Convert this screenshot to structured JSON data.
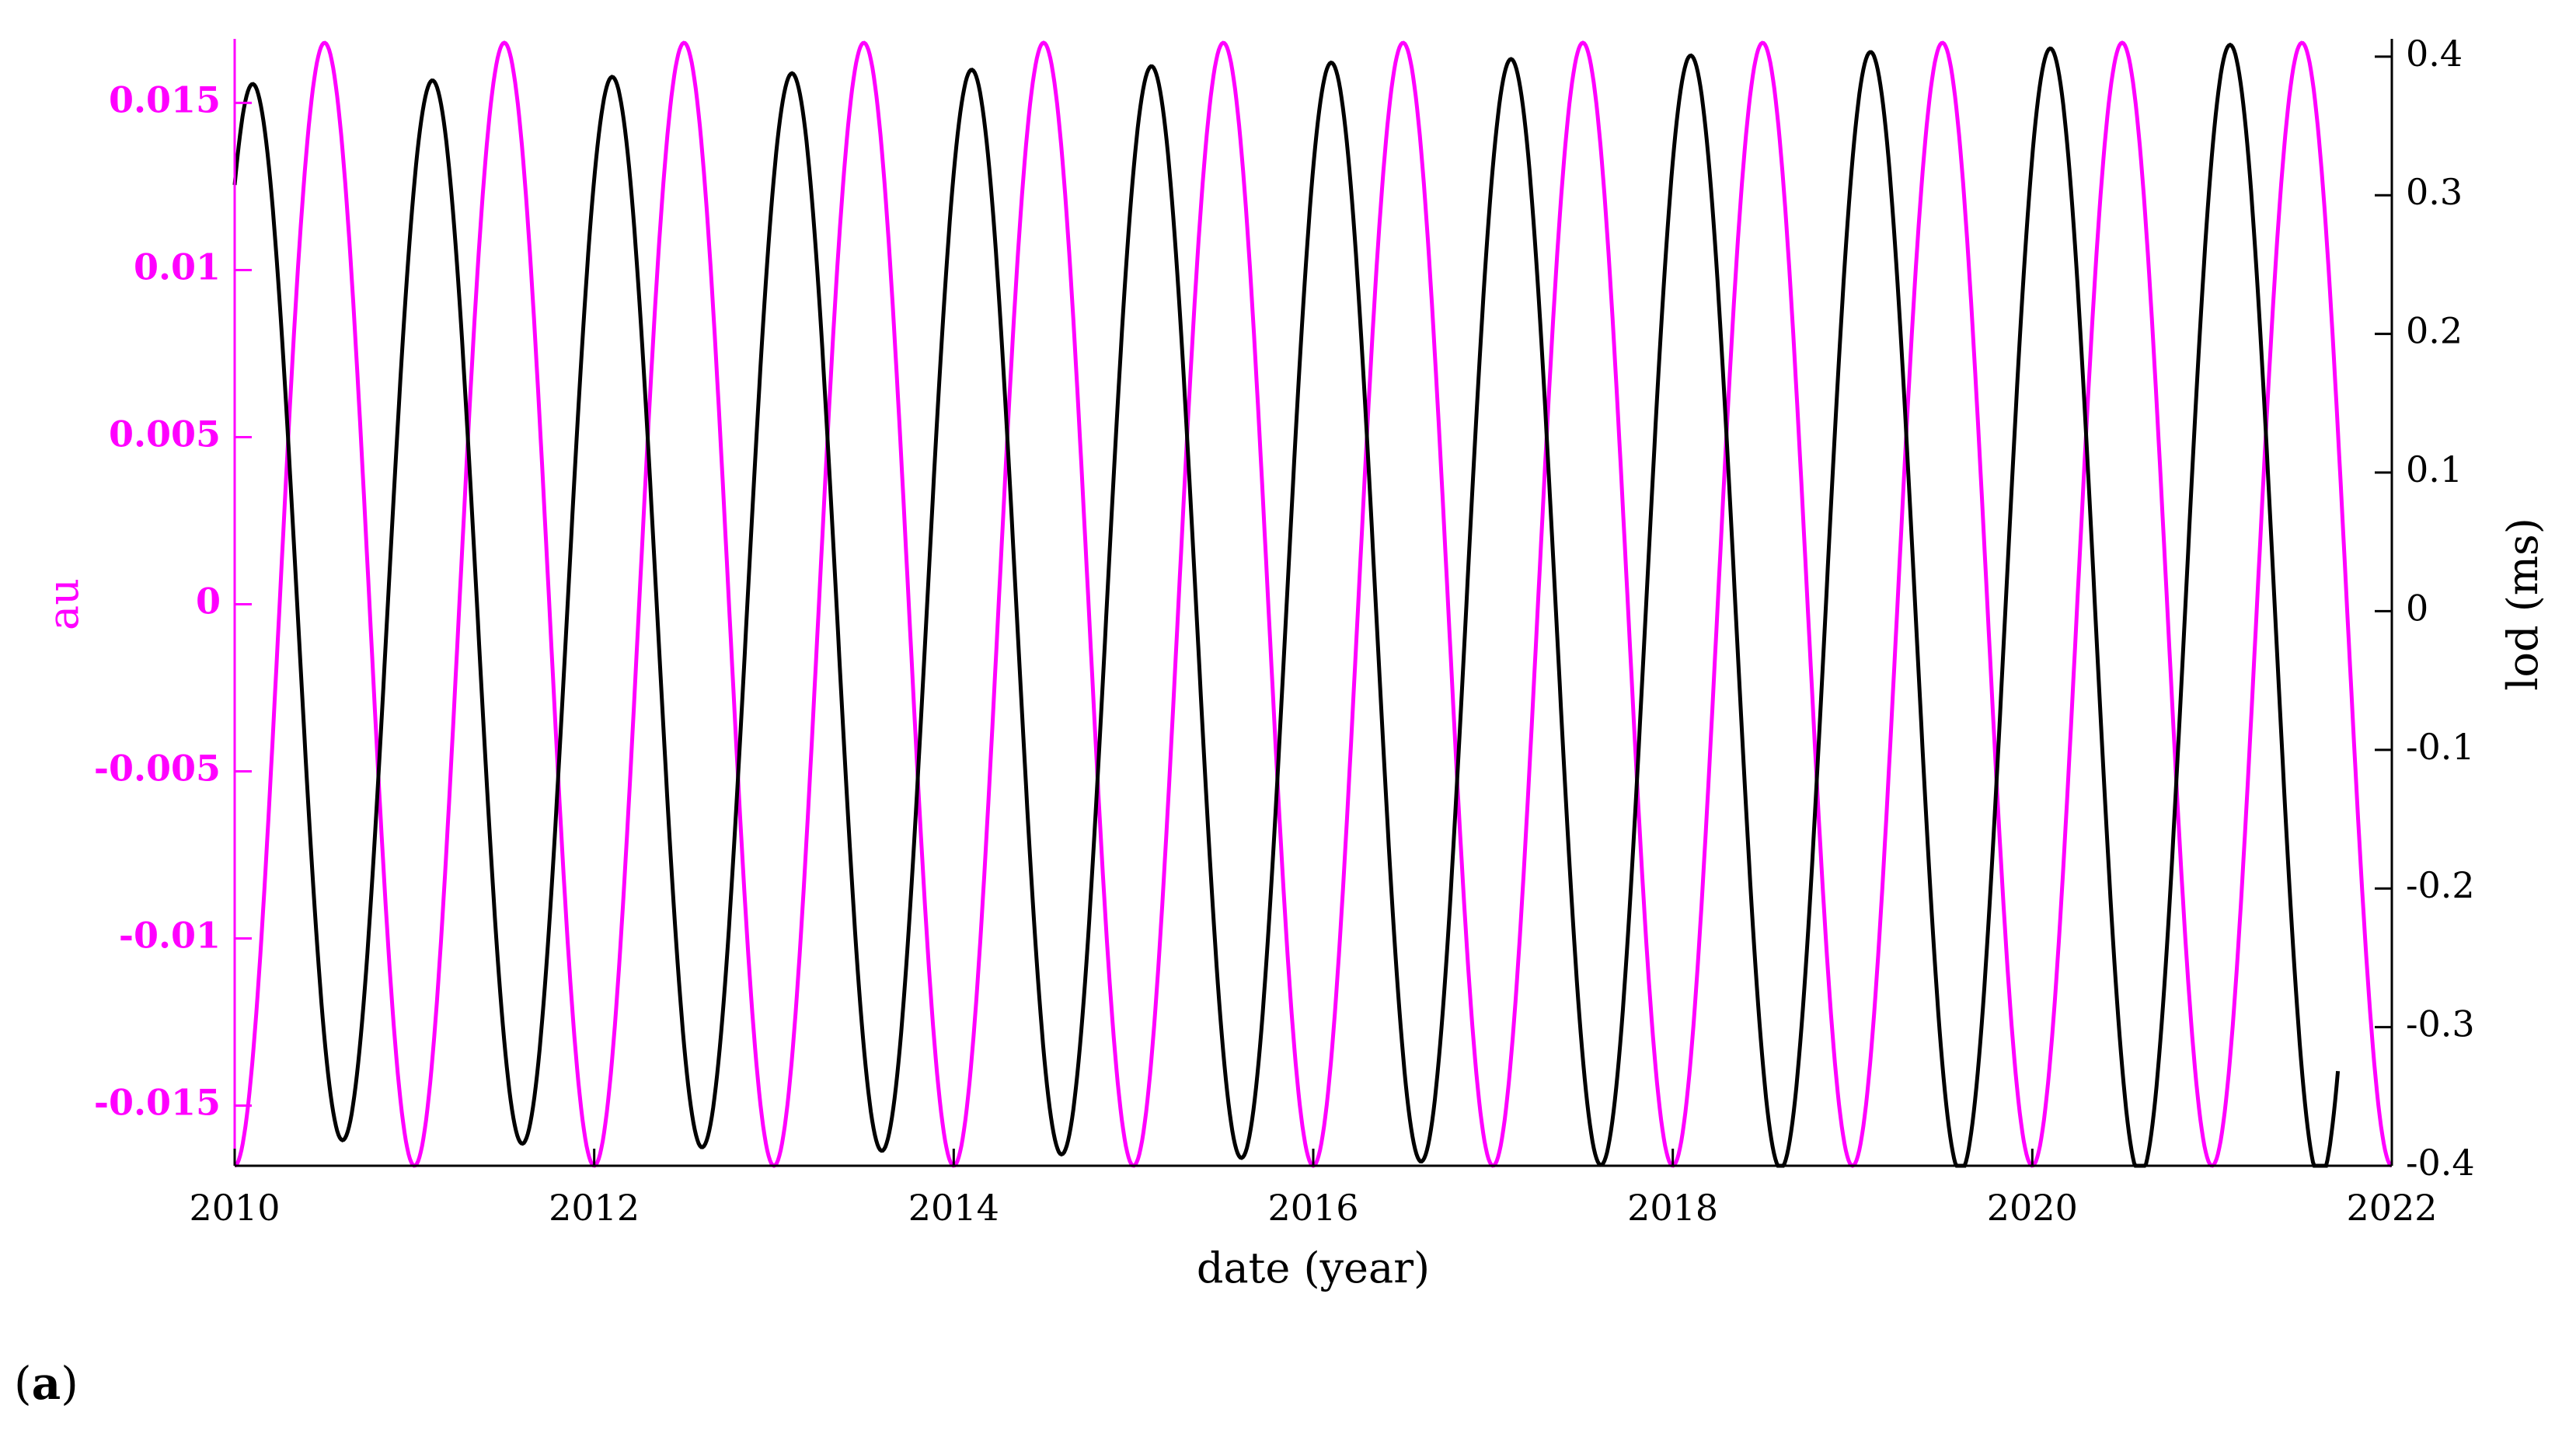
{
  "chart_data": {
    "type": "line",
    "xlabel": "date (year)",
    "ylabel_left": "au",
    "ylabel_right": "lod (ms)",
    "panel_label": "a",
    "xlim": [
      2010,
      2022
    ],
    "ylim_left": [
      -0.0168,
      0.0168
    ],
    "ylim_right": [
      -0.4,
      0.41
    ],
    "x_ticks": [
      "2010",
      "2012",
      "2014",
      "2016",
      "2018",
      "2020",
      "2022"
    ],
    "y_left_ticks": [
      "0.015",
      "0.01",
      "0.005",
      "0",
      "-0.005",
      "-0.01",
      "-0.015"
    ],
    "y_right_ticks": [
      "0.4",
      "0.3",
      "0.2",
      "0.1",
      "0",
      "-0.1",
      "-0.2",
      "-0.3",
      "-0.4"
    ],
    "grid": false,
    "series": [
      {
        "axis": "left",
        "color": "#ff00ff",
        "x_range": [
          2010,
          2022
        ],
        "period_years": 1.0,
        "amplitude": 0.0168,
        "first_peak": 2010.5,
        "note_values": {
          "peaks_at": [
            2010.5,
            2011.5,
            2012.5,
            2013.5,
            2014.5,
            2015.5,
            2016.5,
            2017.5,
            2018.5,
            2019.5,
            2020.5,
            2021.5
          ],
          "peak_value": 0.0168,
          "trough_value": -0.0168
        }
      },
      {
        "axis": "right",
        "color": "#000000",
        "x_range": [
          2010,
          2021.7
        ],
        "period_years": 1.0,
        "amplitude_start": 0.38,
        "amplitude_end": 0.41,
        "first_peak": 2010.1,
        "note_values": {
          "peaks_at": [
            2010.1,
            2011.1,
            2012.1,
            2013.1,
            2014.1,
            2015.1,
            2016.1,
            2017.1,
            2018.1,
            2019.1,
            2020.1,
            2021.1
          ],
          "start_value": 0.32,
          "end_value": -0.36
        }
      }
    ]
  }
}
